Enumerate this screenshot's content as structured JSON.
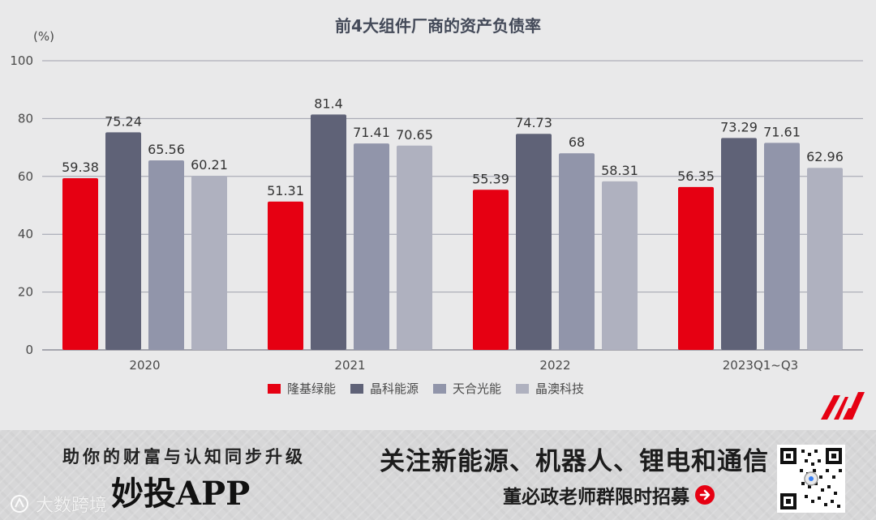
{
  "chart_data": {
    "type": "bar",
    "title": "前4大组件厂商的资产负债率",
    "unit_label": "(%)",
    "categories": [
      "2020",
      "2021",
      "2022",
      "2023Q1~Q3"
    ],
    "ylim": [
      0,
      100
    ],
    "yticks": [
      0,
      20,
      40,
      60,
      80,
      100
    ],
    "ytick_labels": [
      "0",
      "20",
      "40",
      "60",
      "80",
      "100"
    ],
    "grid": true,
    "legend_position": "bottom",
    "series": [
      {
        "name": "隆基绿能",
        "color": "#e60012",
        "values": [
          59.38,
          51.31,
          55.39,
          56.35
        ],
        "labels": [
          "59.38",
          "51.31",
          "55.39",
          "56.35"
        ]
      },
      {
        "name": "晶科能源",
        "color": "#5f6277",
        "values": [
          75.24,
          81.4,
          74.73,
          73.29
        ],
        "labels": [
          "75.24",
          "81.4",
          "74.73",
          "73.29"
        ]
      },
      {
        "name": "天合光能",
        "color": "#9195aa",
        "values": [
          65.56,
          71.41,
          68,
          71.61
        ],
        "labels": [
          "65.56",
          "71.41",
          "68",
          "71.61"
        ]
      },
      {
        "name": "晶澳科技",
        "color": "#afb1bf",
        "values": [
          60.21,
          70.65,
          58.31,
          62.96
        ],
        "labels": [
          "60.21",
          "70.65",
          "58.31",
          "62.96"
        ]
      }
    ]
  },
  "banner": {
    "left_title": "助你的财富与认知同步升级",
    "app_name": "妙投APP",
    "watermark": "大数跨境",
    "right_title": "关注新能源、机器人、锂电和通信",
    "right_subtitle": "董必政老师群限时招募"
  },
  "icons": {
    "logo": "m-logo-icon",
    "arrow": "arrow-right-circle-icon",
    "qr": "qr-code-icon",
    "watermark": "watermark-logo-icon"
  },
  "colors": {
    "background": "#e9e9ea",
    "banner_bg": "#d7d7d8",
    "accent": "#e60012"
  }
}
